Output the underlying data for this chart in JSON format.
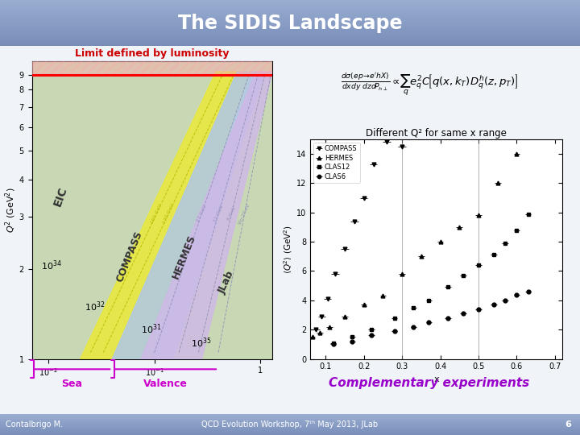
{
  "title": "The SIDIS Landscape",
  "subtitle_left": "Limit defined by luminosity",
  "subtitle_left_color": "#cc0000",
  "plot_right_title": "Different Q² for same x range",
  "complementary_text": "Complementary experiments",
  "complementary_color": "#9900cc",
  "footer_left": "Contalbrigo M.",
  "footer_right": "QCD Evolution Workshop, 7ᵗʰ May 2013, JLab",
  "footer_page": "6",
  "bg_color": "#f0f4f8",
  "title_bg_top": "#7ab0d8",
  "title_bg_bot": "#4a82b4",
  "eic_color": "#c8d8b4",
  "compass_color": "#e8e840",
  "hermes_color": "#b0c8e8",
  "jlab_color": "#d0b8e8",
  "compass_data_x": [
    0.075,
    0.09,
    0.105,
    0.125,
    0.15,
    0.175,
    0.2,
    0.225,
    0.26,
    0.3
  ],
  "compass_data_y": [
    2.0,
    2.9,
    4.1,
    5.8,
    7.5,
    9.4,
    11.0,
    13.3,
    14.8,
    14.5
  ],
  "hermes_data_x": [
    0.065,
    0.085,
    0.11,
    0.15,
    0.2,
    0.25,
    0.3,
    0.35,
    0.4,
    0.45,
    0.5,
    0.55,
    0.6
  ],
  "hermes_data_y": [
    1.5,
    1.8,
    2.2,
    2.9,
    3.7,
    4.3,
    5.8,
    7.0,
    8.0,
    9.0,
    9.8,
    12.0,
    14.0
  ],
  "clas12_data_x": [
    0.12,
    0.17,
    0.22,
    0.28,
    0.33,
    0.37,
    0.42,
    0.46,
    0.5,
    0.54,
    0.57,
    0.6,
    0.63
  ],
  "clas12_data_y": [
    1.1,
    1.5,
    2.0,
    2.8,
    3.5,
    4.0,
    4.9,
    5.7,
    6.4,
    7.1,
    7.9,
    8.8,
    9.9
  ],
  "clas6_data_x": [
    0.12,
    0.17,
    0.22,
    0.28,
    0.33,
    0.37,
    0.42,
    0.46,
    0.5,
    0.54,
    0.57,
    0.6,
    0.63
  ],
  "clas6_data_y": [
    1.0,
    1.2,
    1.6,
    1.9,
    2.2,
    2.5,
    2.8,
    3.1,
    3.4,
    3.7,
    4.0,
    4.4,
    4.6
  ],
  "vlines": [
    0.3,
    0.5
  ],
  "scatter_xlim": [
    0.06,
    0.72
  ],
  "scatter_ylim": [
    0,
    15
  ],
  "scatter_xticks": [
    0.1,
    0.2,
    0.3,
    0.4,
    0.5,
    0.6,
    0.7
  ],
  "scatter_yticks": [
    0,
    2,
    4,
    6,
    8,
    10,
    12,
    14
  ]
}
